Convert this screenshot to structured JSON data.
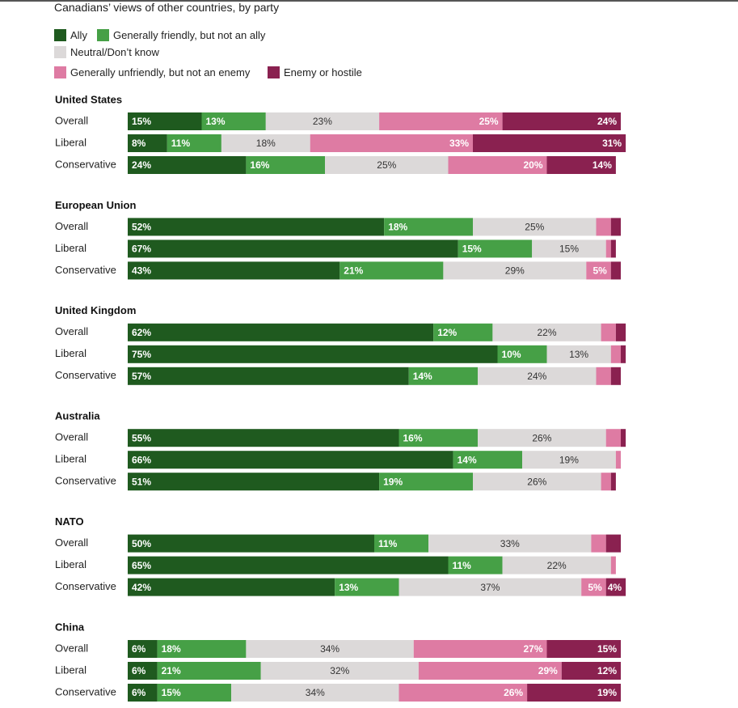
{
  "chart_data": {
    "type": "bar",
    "orientation": "horizontal",
    "stacked": true,
    "title": "Canadians’ views of other countries, by party",
    "legend": [
      {
        "key": "ally",
        "label": "Ally",
        "color": "#1f5a1f"
      },
      {
        "key": "friendly",
        "label": "Generally friendly, but not an ally",
        "color": "#46a046"
      },
      {
        "key": "neutral",
        "label": "Neutral/Don’t know",
        "color": "#dcd9d9"
      },
      {
        "key": "unfriendly",
        "label": "Generally unfriendly, but not an enemy",
        "color": "#de7ba3"
      },
      {
        "key": "enemy",
        "label": "Enemy or hostile",
        "color": "#8a2150"
      }
    ],
    "groups": [
      {
        "name": "United States",
        "rows": [
          {
            "label": "Overall",
            "values": [
              15,
              13,
              23,
              25,
              24
            ]
          },
          {
            "label": "Liberal",
            "values": [
              8,
              11,
              18,
              33,
              31
            ]
          },
          {
            "label": "Conservative",
            "values": [
              24,
              16,
              25,
              20,
              14
            ]
          }
        ]
      },
      {
        "name": "European Union",
        "rows": [
          {
            "label": "Overall",
            "values": [
              52,
              18,
              25,
              3,
              2
            ]
          },
          {
            "label": "Liberal",
            "values": [
              67,
              15,
              15,
              1,
              1
            ]
          },
          {
            "label": "Conservative",
            "values": [
              43,
              21,
              29,
              5,
              2
            ]
          }
        ]
      },
      {
        "name": "United Kingdom",
        "rows": [
          {
            "label": "Overall",
            "values": [
              62,
              12,
              22,
              3,
              2
            ]
          },
          {
            "label": "Liberal",
            "values": [
              75,
              10,
              13,
              2,
              1
            ]
          },
          {
            "label": "Conservative",
            "values": [
              57,
              14,
              24,
              3,
              2
            ]
          }
        ]
      },
      {
        "name": "Australia",
        "rows": [
          {
            "label": "Overall",
            "values": [
              55,
              16,
              26,
              3,
              1
            ]
          },
          {
            "label": "Liberal",
            "values": [
              66,
              14,
              19,
              1,
              0
            ]
          },
          {
            "label": "Conservative",
            "values": [
              51,
              19,
              26,
              2,
              1
            ]
          }
        ]
      },
      {
        "name": "NATO",
        "rows": [
          {
            "label": "Overall",
            "values": [
              50,
              11,
              33,
              3,
              3
            ]
          },
          {
            "label": "Liberal",
            "values": [
              65,
              11,
              22,
              1,
              0
            ]
          },
          {
            "label": "Conservative",
            "values": [
              42,
              13,
              37,
              5,
              4
            ]
          }
        ]
      },
      {
        "name": "China",
        "rows": [
          {
            "label": "Overall",
            "values": [
              6,
              18,
              34,
              27,
              15
            ]
          },
          {
            "label": "Liberal",
            "values": [
              6,
              21,
              32,
              29,
              12
            ]
          },
          {
            "label": "Conservative",
            "values": [
              6,
              15,
              34,
              26,
              19
            ]
          }
        ]
      }
    ],
    "value_suffix": "%"
  }
}
